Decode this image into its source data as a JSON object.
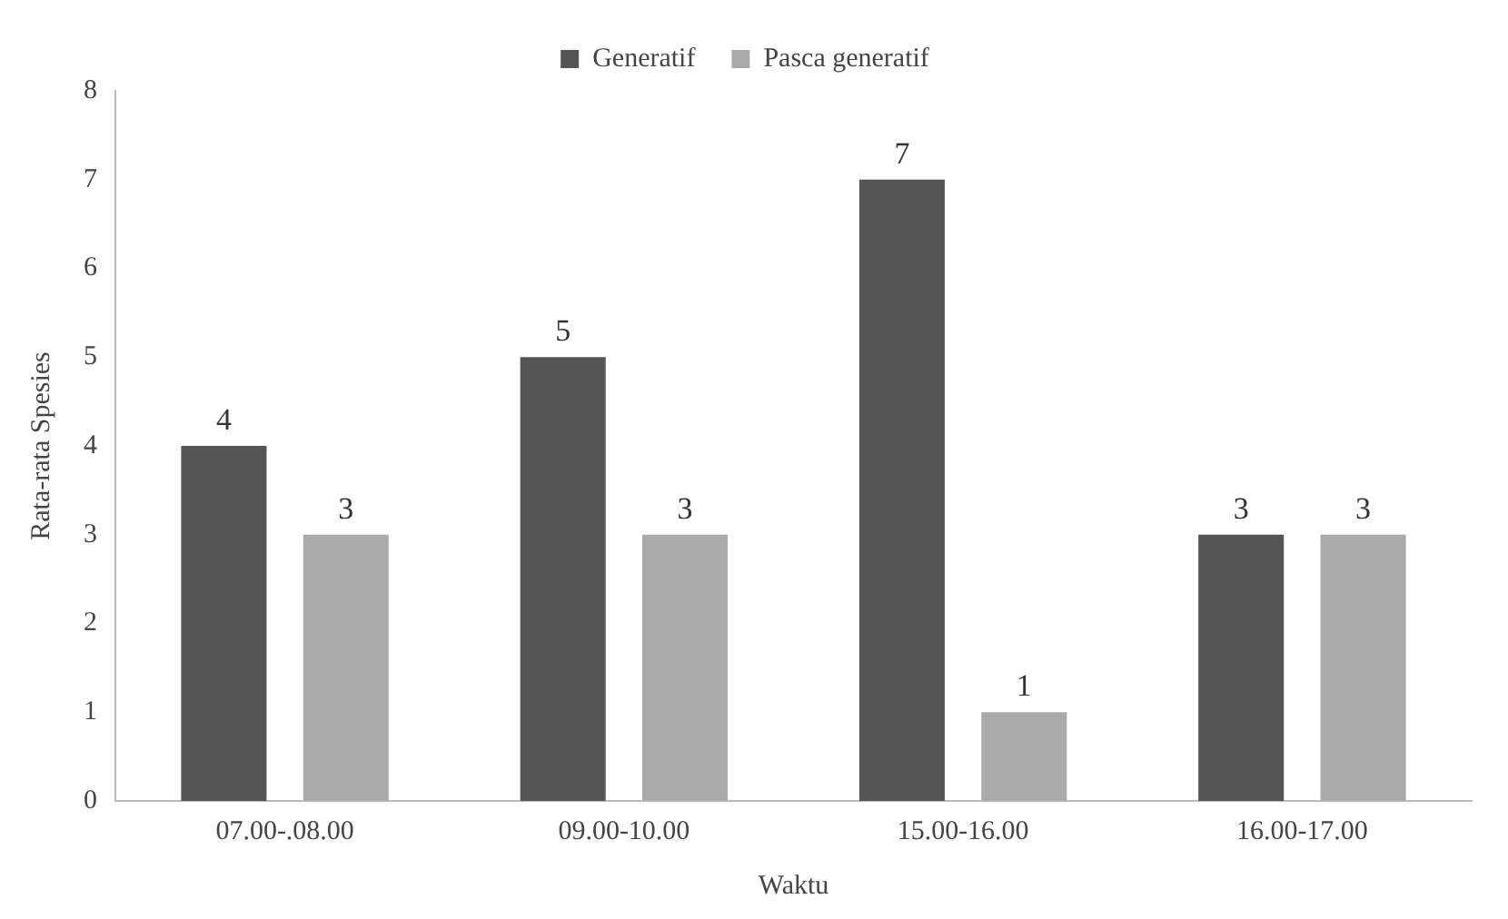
{
  "chart_data": {
    "type": "bar",
    "xlabel": "Waktu",
    "ylabel": "Rata-rata Spesies",
    "categories": [
      "07.00-.08.00",
      "09.00-10.00",
      "15.00-16.00",
      "16.00-17.00"
    ],
    "series": [
      {
        "name": "Generatif",
        "color": "#555555",
        "values": [
          4,
          5,
          7,
          3
        ]
      },
      {
        "name": "Pasca generatif",
        "color": "#aaaaaa",
        "values": [
          3,
          3,
          1,
          3
        ]
      }
    ],
    "ylim": [
      0,
      8
    ],
    "yticks": [
      0,
      1,
      2,
      3,
      4,
      5,
      6,
      7,
      8
    ],
    "grid": false,
    "legend": "top",
    "data_labels": true
  }
}
